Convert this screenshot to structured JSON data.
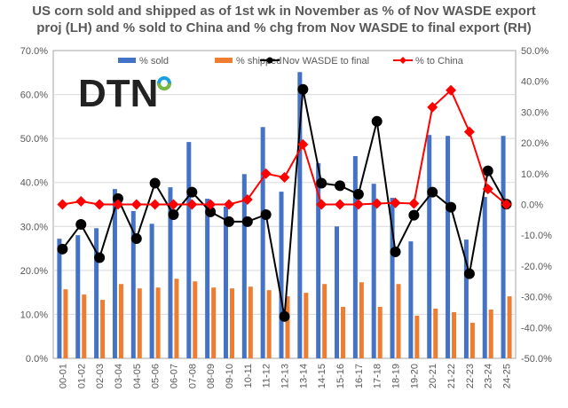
{
  "logo_text": "DTN",
  "chart_data": {
    "type": "bar",
    "title_line1": "US corn sold and shipped as of 1st wk in November as % of Nov WASDE export",
    "title_line2": "proj (LH) and % sold to China and % chg from Nov WASDE to final export (RH)",
    "categories": [
      "00-01",
      "01-02",
      "02-03",
      "03-04",
      "04-05",
      "05-06",
      "06-07",
      "07-08",
      "08-09",
      "09-10",
      "10-11",
      "11-12",
      "12-13",
      "13-14",
      "14-15",
      "15-16",
      "16-17",
      "17-18",
      "18-19",
      "19-20",
      "20-21",
      "21-22",
      "22-23",
      "23-24",
      "24-25"
    ],
    "left_axis": {
      "min": 0,
      "max": 70,
      "step": 10,
      "ticks": [
        "0.0%",
        "10.0%",
        "20.0%",
        "30.0%",
        "40.0%",
        "50.0%",
        "60.0%",
        "70.0%"
      ]
    },
    "right_axis": {
      "min": -50,
      "max": 50,
      "step": 10,
      "ticks": [
        "-50.0%",
        "-40.0%",
        "-30.0%",
        "-20.0%",
        "-10.0%",
        "0.0%",
        "10.0%",
        "20.0%",
        "30.0%",
        "40.0%",
        "50.0%"
      ]
    },
    "grid": true,
    "legend_position": "top",
    "series": [
      {
        "name": "% sold",
        "type": "bar",
        "axis": "left",
        "color": "#4472C4",
        "values": [
          27.2,
          28.0,
          29.6,
          38.5,
          33.5,
          30.6,
          38.9,
          49.2,
          36.3,
          34.5,
          41.9,
          52.6,
          37.9,
          65.1,
          44.4,
          30.0,
          46.0,
          39.7,
          36.5,
          26.6,
          50.8,
          50.6,
          27.0,
          36.7,
          50.6
        ]
      },
      {
        "name": "% shipped",
        "type": "bar",
        "axis": "left",
        "color": "#ED7D31",
        "values": [
          15.7,
          14.5,
          13.3,
          16.9,
          15.9,
          16.1,
          18.1,
          17.5,
          16.1,
          15.9,
          16.3,
          15.5,
          14.1,
          14.9,
          16.9,
          11.7,
          17.3,
          11.7,
          16.9,
          9.7,
          11.3,
          10.5,
          8.1,
          11.1,
          14.1
        ]
      },
      {
        "name": "Nov WASDE to final",
        "type": "line",
        "axis": "right",
        "color": "#000000",
        "marker": "circle",
        "values": [
          -14.5,
          -6.5,
          -17.3,
          1.9,
          -11.1,
          6.9,
          -3.3,
          4.0,
          -2.4,
          -5.6,
          -5.6,
          -3.3,
          -36.4,
          37.4,
          6.9,
          6.1,
          3.3,
          27.0,
          -15.4,
          -3.5,
          4.0,
          -0.9,
          -22.5,
          10.9,
          0.1
        ]
      },
      {
        "name": "% to China",
        "type": "line",
        "axis": "right",
        "color": "#FF0000",
        "marker": "diamond",
        "values": [
          0,
          1.0,
          0,
          0,
          0,
          0,
          0,
          0,
          0,
          0,
          1.6,
          10.0,
          8.8,
          19.5,
          0,
          0,
          0,
          0.3,
          0.5,
          0.3,
          31.6,
          37.1,
          23.6,
          5.0,
          0
        ]
      }
    ]
  }
}
